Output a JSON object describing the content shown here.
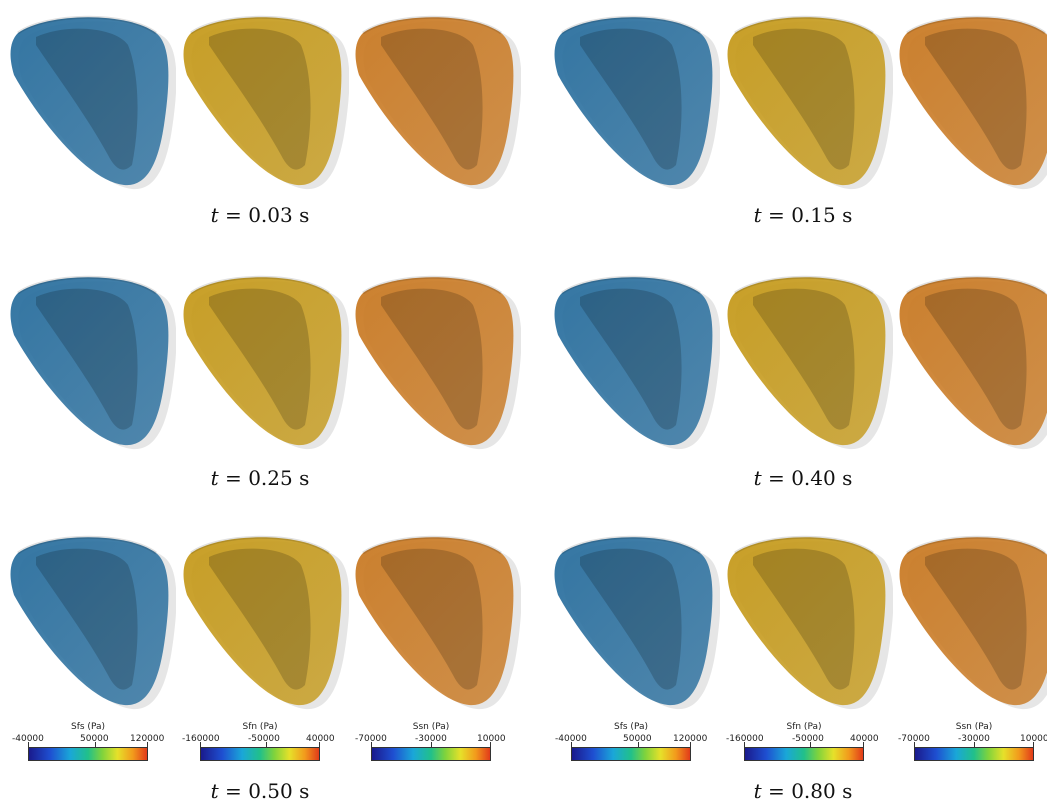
{
  "panels": [
    {
      "time_label": "0.03"
    },
    {
      "time_label": "0.15"
    },
    {
      "time_label": "0.25"
    },
    {
      "time_label": "0.40"
    },
    {
      "time_label": "0.50"
    },
    {
      "time_label": "0.80"
    }
  ],
  "time_symbol": "t",
  "time_unit": "s",
  "colorbars": [
    {
      "title": "Sfs (Pa)",
      "min": "-40000",
      "mid": "50000",
      "max": "120000"
    },
    {
      "title": "Sfn (Pa)",
      "min": "-160000",
      "mid": "-50000",
      "max": "40000"
    },
    {
      "title": "Ssn (Pa)",
      "min": "-70000",
      "mid": "-30000",
      "max": "10000"
    }
  ],
  "colors": {
    "sfs_base": "#2a6f9e",
    "sfn_base": "#c59a1c",
    "ssn_base": "#c97a24"
  }
}
